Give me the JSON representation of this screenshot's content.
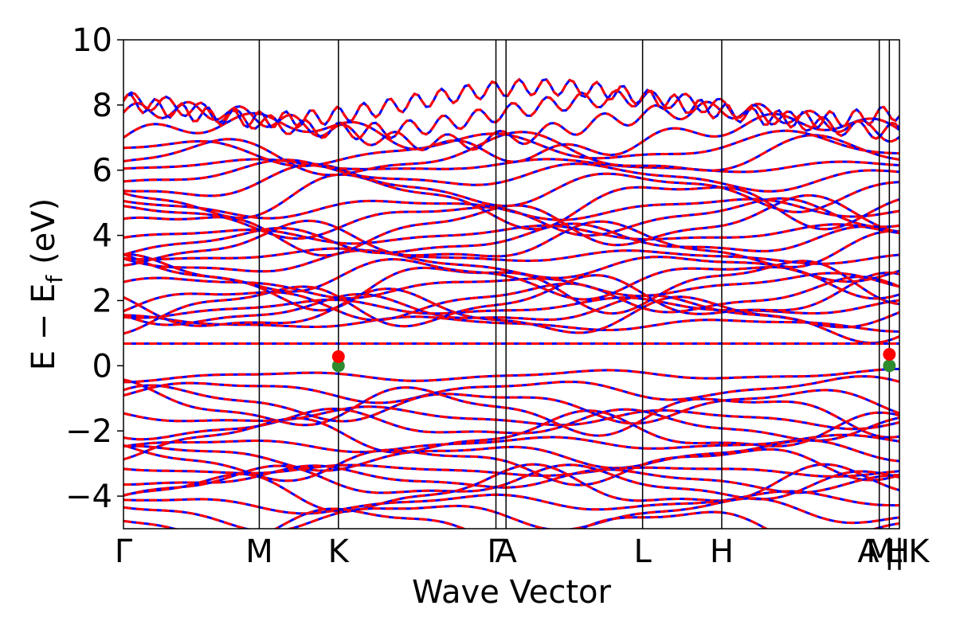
{
  "chart_data": {
    "type": "line",
    "title": "",
    "xlabel": "Wave Vector",
    "ylabel": "E − E",
    "ylabel_subscript": "f",
    "ylabel_unit": "(eV)",
    "ylim": [
      -5,
      10
    ],
    "xlim": [
      0,
      1
    ],
    "yticks": [
      -4,
      -2,
      0,
      2,
      4,
      6,
      8,
      10
    ],
    "ytick_labels": [
      "−4",
      "−2",
      "0",
      "2",
      "4",
      "6",
      "8",
      "10"
    ],
    "kpoints": [
      {
        "label": "Γ",
        "x": 0.0
      },
      {
        "label": "M",
        "x": 0.175
      },
      {
        "label": "K",
        "x": 0.277
      },
      {
        "label": "Γ",
        "x": 0.48
      },
      {
        "label": "A",
        "x": 0.493
      },
      {
        "label": "L",
        "x": 0.669
      },
      {
        "label": "H",
        "x": 0.771
      },
      {
        "label": "A",
        "x": 0.974
      },
      {
        "label": "M",
        "x": 0.974
      },
      {
        "label": "|",
        "x": 0.987
      },
      {
        "label": "L",
        "x": 0.987
      },
      {
        "label": "H",
        "x": 1.0
      },
      {
        "label": "|",
        "x": 1.0
      },
      {
        "label": "K",
        "x": 1.0
      }
    ],
    "xtick_labels": [
      {
        "text": "Γ",
        "x": 0.0
      },
      {
        "text": "M",
        "x": 0.175
      },
      {
        "text": "K",
        "x": 0.277
      },
      {
        "text": "Γ",
        "x": 0.48
      },
      {
        "text": "A",
        "x": 0.493
      },
      {
        "text": "L",
        "x": 0.669
      },
      {
        "text": "H",
        "x": 0.771
      },
      {
        "text": "A",
        "x": 0.96
      },
      {
        "text": "M",
        "x": 0.975
      },
      {
        "text": "|",
        "x": 0.987
      },
      {
        "text": "L",
        "x": 0.992
      },
      {
        "text": "H",
        "x": 0.998
      },
      {
        "text": "|",
        "x": 1.0
      },
      {
        "text": "K",
        "x": 1.025
      }
    ],
    "band_gap_markers": [
      {
        "x": 0.277,
        "y": 0.0,
        "color": "#2e8b2e"
      },
      {
        "x": 0.277,
        "y": 0.28,
        "color": "#ff0000"
      },
      {
        "x": 0.987,
        "y": 0.0,
        "color": "#2e8b2e"
      },
      {
        "x": 0.987,
        "y": 0.35,
        "color": "#ff0000"
      }
    ],
    "flat_band": {
      "y": 0.68
    },
    "series": [
      {
        "color": "#0000ff",
        "style": "solid"
      },
      {
        "color": "#ff0000",
        "style": "dashed"
      }
    ],
    "bands": {
      "conduction_base": [
        1.3,
        1.5,
        1.6,
        1.75,
        1.9,
        2.05,
        2.5,
        2.65,
        2.8,
        3.1,
        3.35,
        3.6,
        3.75,
        4.0,
        4.3,
        4.6,
        4.9,
        5.2,
        5.5,
        5.8,
        6.1,
        6.3,
        6.6
      ],
      "valence_base": [
        -0.3,
        -0.7,
        -1.1,
        -1.3,
        -1.6,
        -1.9,
        -2.2,
        -2.4,
        -2.7,
        -2.9,
        -3.2,
        -3.5,
        -3.7,
        -3.9,
        -4.2,
        -4.5,
        -4.8
      ]
    },
    "grid": false,
    "legend": "none"
  }
}
